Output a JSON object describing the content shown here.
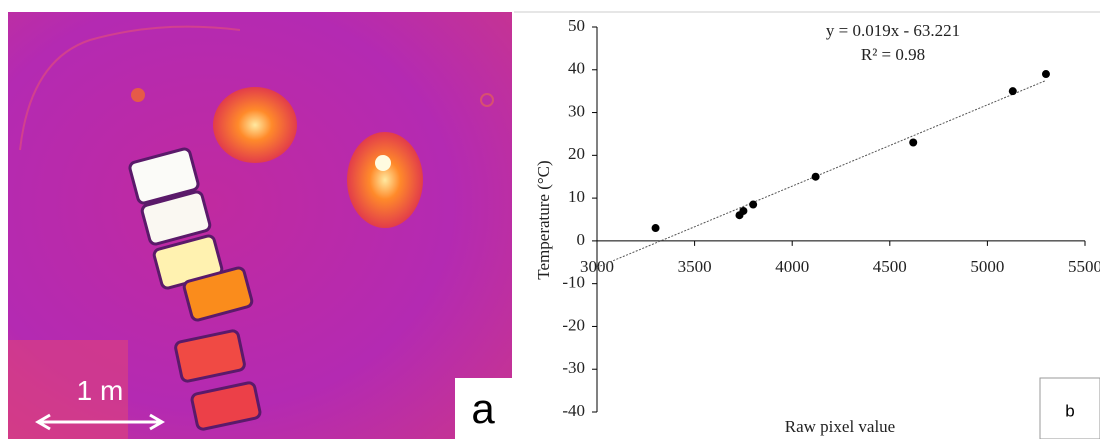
{
  "image_panel": {
    "scale_label": "1 m",
    "panel_label": "a"
  },
  "chart_data": {
    "type": "scatter",
    "panel_label": "b",
    "x_label": "Raw pixel value",
    "y_label": "Temperature (°C)",
    "x": [
      3300,
      3730,
      3750,
      3800,
      4120,
      4620,
      5130,
      5300
    ],
    "values": [
      3,
      6,
      7,
      8.5,
      15,
      23,
      35,
      39
    ],
    "color": "#000000",
    "trendline": {
      "x": [
        3000,
        5300
      ],
      "values": [
        -6.2,
        37.5
      ],
      "color": "#555555",
      "equation": "y = 0.019x - 63.221",
      "r_squared": "R² = 0.98"
    },
    "xlim": [
      3000,
      5500
    ],
    "xticks": [
      3000,
      3500,
      4000,
      4500,
      5000,
      5500
    ],
    "ylim": [
      -40,
      50
    ],
    "yticks": [
      -40,
      -30,
      -20,
      -10,
      0,
      10,
      20,
      30,
      40,
      50
    ],
    "grid": false
  }
}
